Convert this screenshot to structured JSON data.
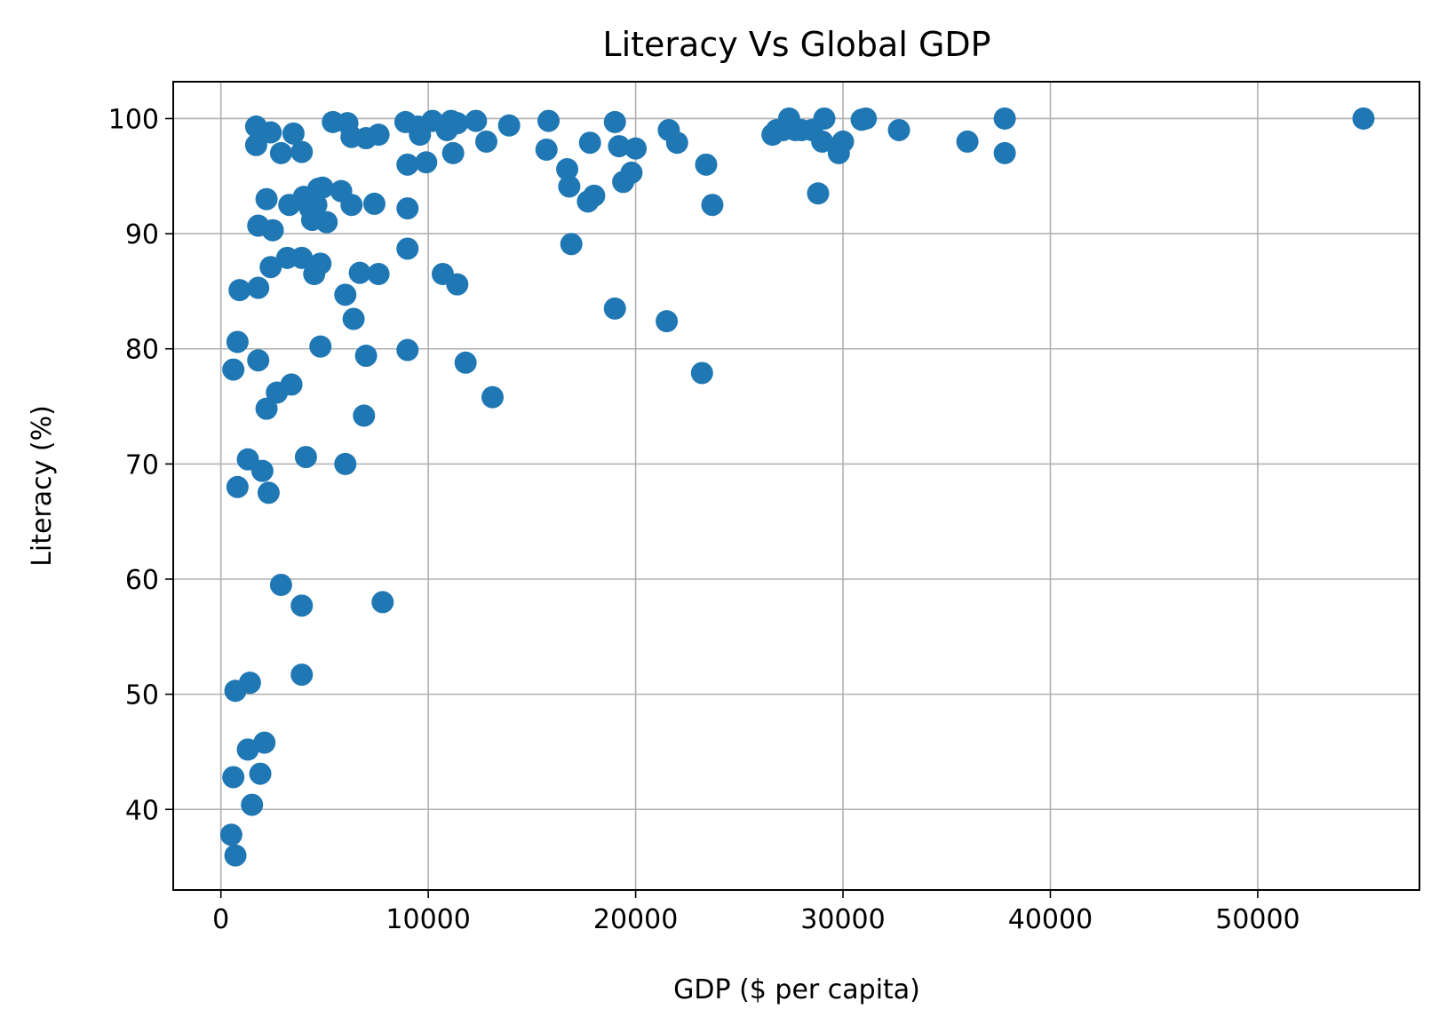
{
  "chart_data": {
    "type": "scatter",
    "title": "Literacy Vs Global GDP",
    "xlabel": "GDP ($ per capita)",
    "ylabel": "Literacy (%)",
    "xlim": [
      -2300,
      57800
    ],
    "ylim": [
      33,
      103.2
    ],
    "xticks": [
      0,
      10000,
      20000,
      30000,
      40000,
      50000
    ],
    "xtick_labels": [
      "0",
      "10000",
      "20000",
      "30000",
      "40000",
      "50000"
    ],
    "yticks": [
      40,
      50,
      60,
      70,
      80,
      90,
      100
    ],
    "ytick_labels": [
      "40",
      "50",
      "60",
      "70",
      "80",
      "90",
      "100"
    ],
    "grid": true,
    "marker_color": "#1f77b4",
    "series": [
      {
        "points": [
          [
            55100,
            100
          ],
          [
            37800,
            100
          ],
          [
            37800,
            97
          ],
          [
            36000,
            98
          ],
          [
            32700,
            99
          ],
          [
            31100,
            100
          ],
          [
            30900,
            99.9
          ],
          [
            30000,
            98
          ],
          [
            29800,
            97
          ],
          [
            29100,
            100
          ],
          [
            29000,
            98
          ],
          [
            28800,
            93.5
          ],
          [
            28500,
            99
          ],
          [
            28000,
            99
          ],
          [
            27700,
            99
          ],
          [
            27400,
            100
          ],
          [
            27100,
            99
          ],
          [
            26800,
            99
          ],
          [
            26600,
            98.6
          ],
          [
            23700,
            92.5
          ],
          [
            23400,
            96
          ],
          [
            23200,
            77.9
          ],
          [
            22000,
            97.9
          ],
          [
            21600,
            99
          ],
          [
            21500,
            82.4
          ],
          [
            20000,
            97.4
          ],
          [
            19800,
            95.3
          ],
          [
            19400,
            94.5
          ],
          [
            19200,
            97.6
          ],
          [
            19000,
            99.7
          ],
          [
            19000,
            83.5
          ],
          [
            18000,
            93.3
          ],
          [
            17800,
            97.9
          ],
          [
            17700,
            92.8
          ],
          [
            16900,
            89.1
          ],
          [
            16800,
            94.1
          ],
          [
            16700,
            95.6
          ],
          [
            15800,
            99.8
          ],
          [
            15700,
            97.3
          ],
          [
            13900,
            99.4
          ],
          [
            13100,
            75.8
          ],
          [
            12800,
            98
          ],
          [
            12300,
            99.8
          ],
          [
            11800,
            78.8
          ],
          [
            11400,
            85.6
          ],
          [
            11400,
            99.6
          ],
          [
            11200,
            97
          ],
          [
            11100,
            99.8
          ],
          [
            10900,
            99
          ],
          [
            10700,
            86.5
          ],
          [
            10200,
            99.8
          ],
          [
            9900,
            96.2
          ],
          [
            9600,
            98.6
          ],
          [
            9500,
            99.3
          ],
          [
            9000,
            96
          ],
          [
            9000,
            92.2
          ],
          [
            9000,
            88.7
          ],
          [
            9000,
            79.9
          ],
          [
            8900,
            99.7
          ],
          [
            7800,
            58
          ],
          [
            7600,
            98.6
          ],
          [
            7600,
            86.5
          ],
          [
            7400,
            92.6
          ],
          [
            7000,
            98.3
          ],
          [
            7000,
            79.4
          ],
          [
            6900,
            74.2
          ],
          [
            6700,
            86.6
          ],
          [
            6400,
            82.6
          ],
          [
            6300,
            92.5
          ],
          [
            6300,
            98.4
          ],
          [
            6100,
            99.6
          ],
          [
            6000,
            70
          ],
          [
            6000,
            84.7
          ],
          [
            5800,
            93.7
          ],
          [
            5400,
            99.7
          ],
          [
            5100,
            91
          ],
          [
            4900,
            94
          ],
          [
            4800,
            87.4
          ],
          [
            4800,
            80.2
          ],
          [
            4700,
            93.9
          ],
          [
            4600,
            92.5
          ],
          [
            4500,
            86.5
          ],
          [
            4400,
            91.2
          ],
          [
            4300,
            92.2
          ],
          [
            4100,
            70.6
          ],
          [
            4000,
            93.2
          ],
          [
            3900,
            97.1
          ],
          [
            3900,
            87.9
          ],
          [
            3900,
            57.7
          ],
          [
            3900,
            51.7
          ],
          [
            3500,
            98.7
          ],
          [
            3400,
            76.9
          ],
          [
            3300,
            92.5
          ],
          [
            3200,
            87.9
          ],
          [
            2900,
            59.5
          ],
          [
            2900,
            97
          ],
          [
            2700,
            76.2
          ],
          [
            2500,
            90.3
          ],
          [
            2400,
            98.8
          ],
          [
            2400,
            87.1
          ],
          [
            2300,
            67.5
          ],
          [
            2200,
            74.8
          ],
          [
            2200,
            93
          ],
          [
            2100,
            45.8
          ],
          [
            2000,
            69.4
          ],
          [
            1900,
            43.1
          ],
          [
            1800,
            79
          ],
          [
            1800,
            85.3
          ],
          [
            1800,
            90.7
          ],
          [
            1700,
            97.7
          ],
          [
            1700,
            99.3
          ],
          [
            1500,
            40.4
          ],
          [
            1400,
            51
          ],
          [
            1300,
            45.2
          ],
          [
            1300,
            70.4
          ],
          [
            900,
            85.1
          ],
          [
            800,
            68
          ],
          [
            800,
            80.6
          ],
          [
            700,
            50.3
          ],
          [
            700,
            36
          ],
          [
            600,
            42.8
          ],
          [
            600,
            78.2
          ],
          [
            500,
            37.8
          ]
        ]
      }
    ]
  }
}
